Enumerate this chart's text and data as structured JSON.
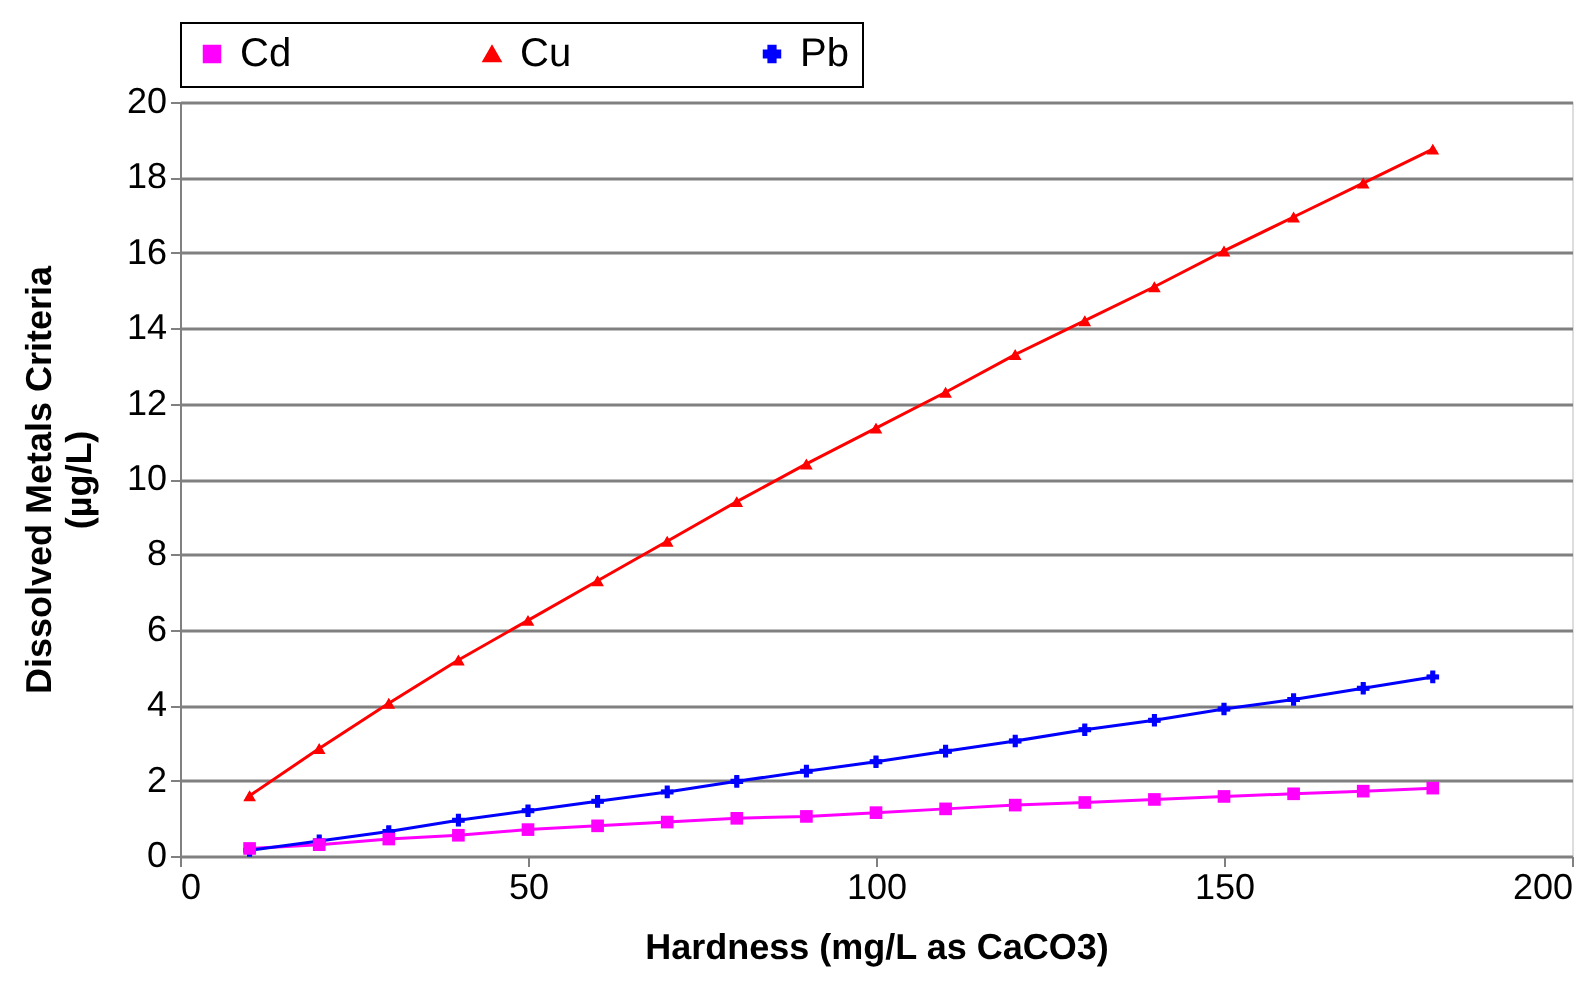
{
  "chart_data": {
    "type": "line",
    "xlabel": "Hardness (mg/L as CaCO3)",
    "ylabel": "Dissolved Metals Criteria\n(µg/L)",
    "x": [
      10,
      20,
      30,
      40,
      50,
      60,
      70,
      80,
      90,
      100,
      110,
      120,
      130,
      140,
      150,
      160,
      170,
      180
    ],
    "series": [
      {
        "name": "Cd",
        "color": "#ff00ff",
        "marker": "square",
        "values": [
          0.2,
          0.3,
          0.45,
          0.55,
          0.7,
          0.8,
          0.9,
          1.0,
          1.05,
          1.15,
          1.25,
          1.35,
          1.42,
          1.5,
          1.58,
          1.65,
          1.72,
          1.8
        ]
      },
      {
        "name": "Cu",
        "color": "#ff0000",
        "marker": "triangle",
        "values": [
          1.6,
          2.85,
          4.05,
          5.2,
          6.25,
          7.3,
          8.35,
          9.4,
          10.4,
          11.35,
          12.3,
          13.3,
          14.2,
          15.1,
          16.05,
          16.95,
          17.85,
          18.75
        ]
      },
      {
        "name": "Pb",
        "color": "#0000ff",
        "marker": "cross",
        "values": [
          0.15,
          0.4,
          0.65,
          0.95,
          1.2,
          1.45,
          1.7,
          1.98,
          2.25,
          2.5,
          2.78,
          3.05,
          3.35,
          3.6,
          3.9,
          4.15,
          4.45,
          4.75
        ]
      }
    ],
    "xlim": [
      0,
      200
    ],
    "xticks": [
      0,
      50,
      100,
      150,
      200
    ],
    "ylim": [
      0,
      20
    ],
    "yticks": [
      0,
      2,
      4,
      6,
      8,
      10,
      12,
      14,
      16,
      18,
      20
    ],
    "grid": "y",
    "legend": "top",
    "line_style": "solid"
  }
}
